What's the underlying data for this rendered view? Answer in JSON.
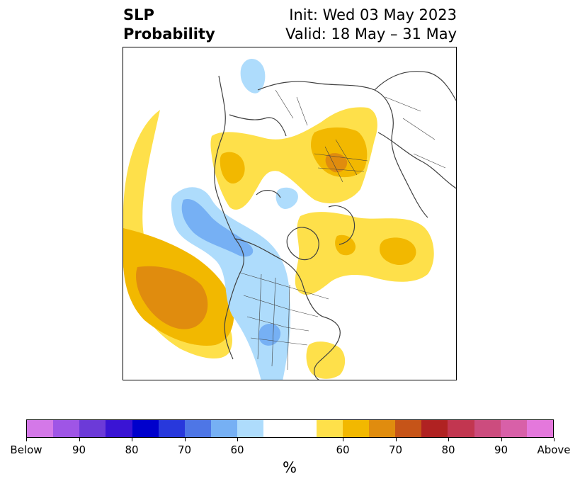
{
  "header": {
    "title_line1": "SLP",
    "title_line2": "Probability",
    "init_text": "Init: Wed 03 May 2023",
    "valid_text": "Valid: 18 May – 31 May"
  },
  "colorbar": {
    "colors": [
      "#d478e8",
      "#9f55e6",
      "#6c3ad8",
      "#3a14d4",
      "#0000cc",
      "#2838dc",
      "#4e76e6",
      "#76b0f4",
      "#aedcfc",
      "#ffffff",
      "#fee04a",
      "#f2b800",
      "#e08c0e",
      "#c65418",
      "#b02222",
      "#c23650",
      "#cc4c7e",
      "#d860a8",
      "#e478dc"
    ],
    "tick_labels": [
      "Below",
      "90",
      "80",
      "70",
      "60",
      "60",
      "70",
      "80",
      "90",
      "Above"
    ],
    "unit_label": "%"
  },
  "map": {
    "below_colors": {
      "60": "#aedcfc",
      "70": "#76b0f4"
    },
    "above_colors": {
      "60": "#fee04a",
      "70": "#f2b800",
      "80": "#e08c0e"
    },
    "coastline_color": "#404040"
  }
}
